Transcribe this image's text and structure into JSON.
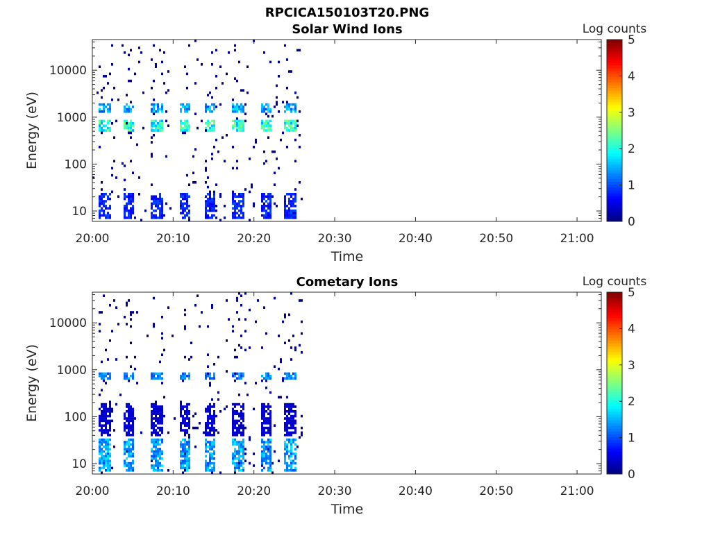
{
  "figure": {
    "title": "RPCICA150103T20.PNG"
  },
  "chart_data": [
    {
      "type": "heatmap",
      "title": "Solar Wind Ions",
      "xlabel": "Time",
      "ylabel": "Energy (eV)",
      "yscale": "log",
      "xlim": [
        "20:00",
        "21:03"
      ],
      "ylim": [
        6,
        45000
      ],
      "xticks": [
        "20:00",
        "20:10",
        "20:20",
        "20:30",
        "20:40",
        "20:50",
        "21:00"
      ],
      "yticks": [
        "10",
        "100",
        "1000",
        "10000"
      ],
      "colorbar": {
        "label": "Log counts",
        "range": [
          0,
          5
        ],
        "ticks": [
          "0",
          "1",
          "2",
          "3",
          "4",
          "5"
        ],
        "colormap": "jet"
      },
      "data_time_range": [
        "20:00",
        "20:26"
      ],
      "sweep_start_times": [
        "20:01",
        "20:04",
        "20:07.5",
        "20:11",
        "20:14",
        "20:17.5",
        "20:21",
        "20:24"
      ],
      "features": [
        {
          "energy_range": [
            500,
            900
          ],
          "log_counts": 2.6,
          "description": "solar wind proton peak"
        },
        {
          "energy_range": [
            1300,
            1900
          ],
          "log_counts": 1.8,
          "description": "alpha particle peak"
        },
        {
          "energy_range": [
            7,
            25
          ],
          "log_counts": 1.0,
          "description": "low-energy streaks"
        }
      ]
    },
    {
      "type": "heatmap",
      "title": "Cometary Ions",
      "xlabel": "Time",
      "ylabel": "Energy (eV)",
      "yscale": "log",
      "xlim": [
        "20:00",
        "21:03"
      ],
      "ylim": [
        6,
        45000
      ],
      "xticks": [
        "20:00",
        "20:10",
        "20:20",
        "20:30",
        "20:40",
        "20:50",
        "21:00"
      ],
      "yticks": [
        "10",
        "100",
        "1000",
        "10000"
      ],
      "colorbar": {
        "label": "Log counts",
        "range": [
          0,
          5
        ],
        "ticks": [
          "0",
          "1",
          "2",
          "3",
          "4",
          "5"
        ],
        "colormap": "jet"
      },
      "data_time_range": [
        "20:00",
        "20:26"
      ],
      "sweep_start_times": [
        "20:01",
        "20:04",
        "20:07.5",
        "20:11",
        "20:14",
        "20:17.5",
        "20:21",
        "20:24"
      ],
      "features": [
        {
          "energy_range": [
            600,
            900
          ],
          "log_counts": 1.6,
          "description": "solar wind leakage"
        },
        {
          "energy_range": [
            7,
            35
          ],
          "log_counts": 1.8,
          "description": "cold cometary ion streaks"
        },
        {
          "energy_range": [
            40,
            200
          ],
          "log_counts": 0.5,
          "description": "scattered counts"
        }
      ]
    }
  ]
}
